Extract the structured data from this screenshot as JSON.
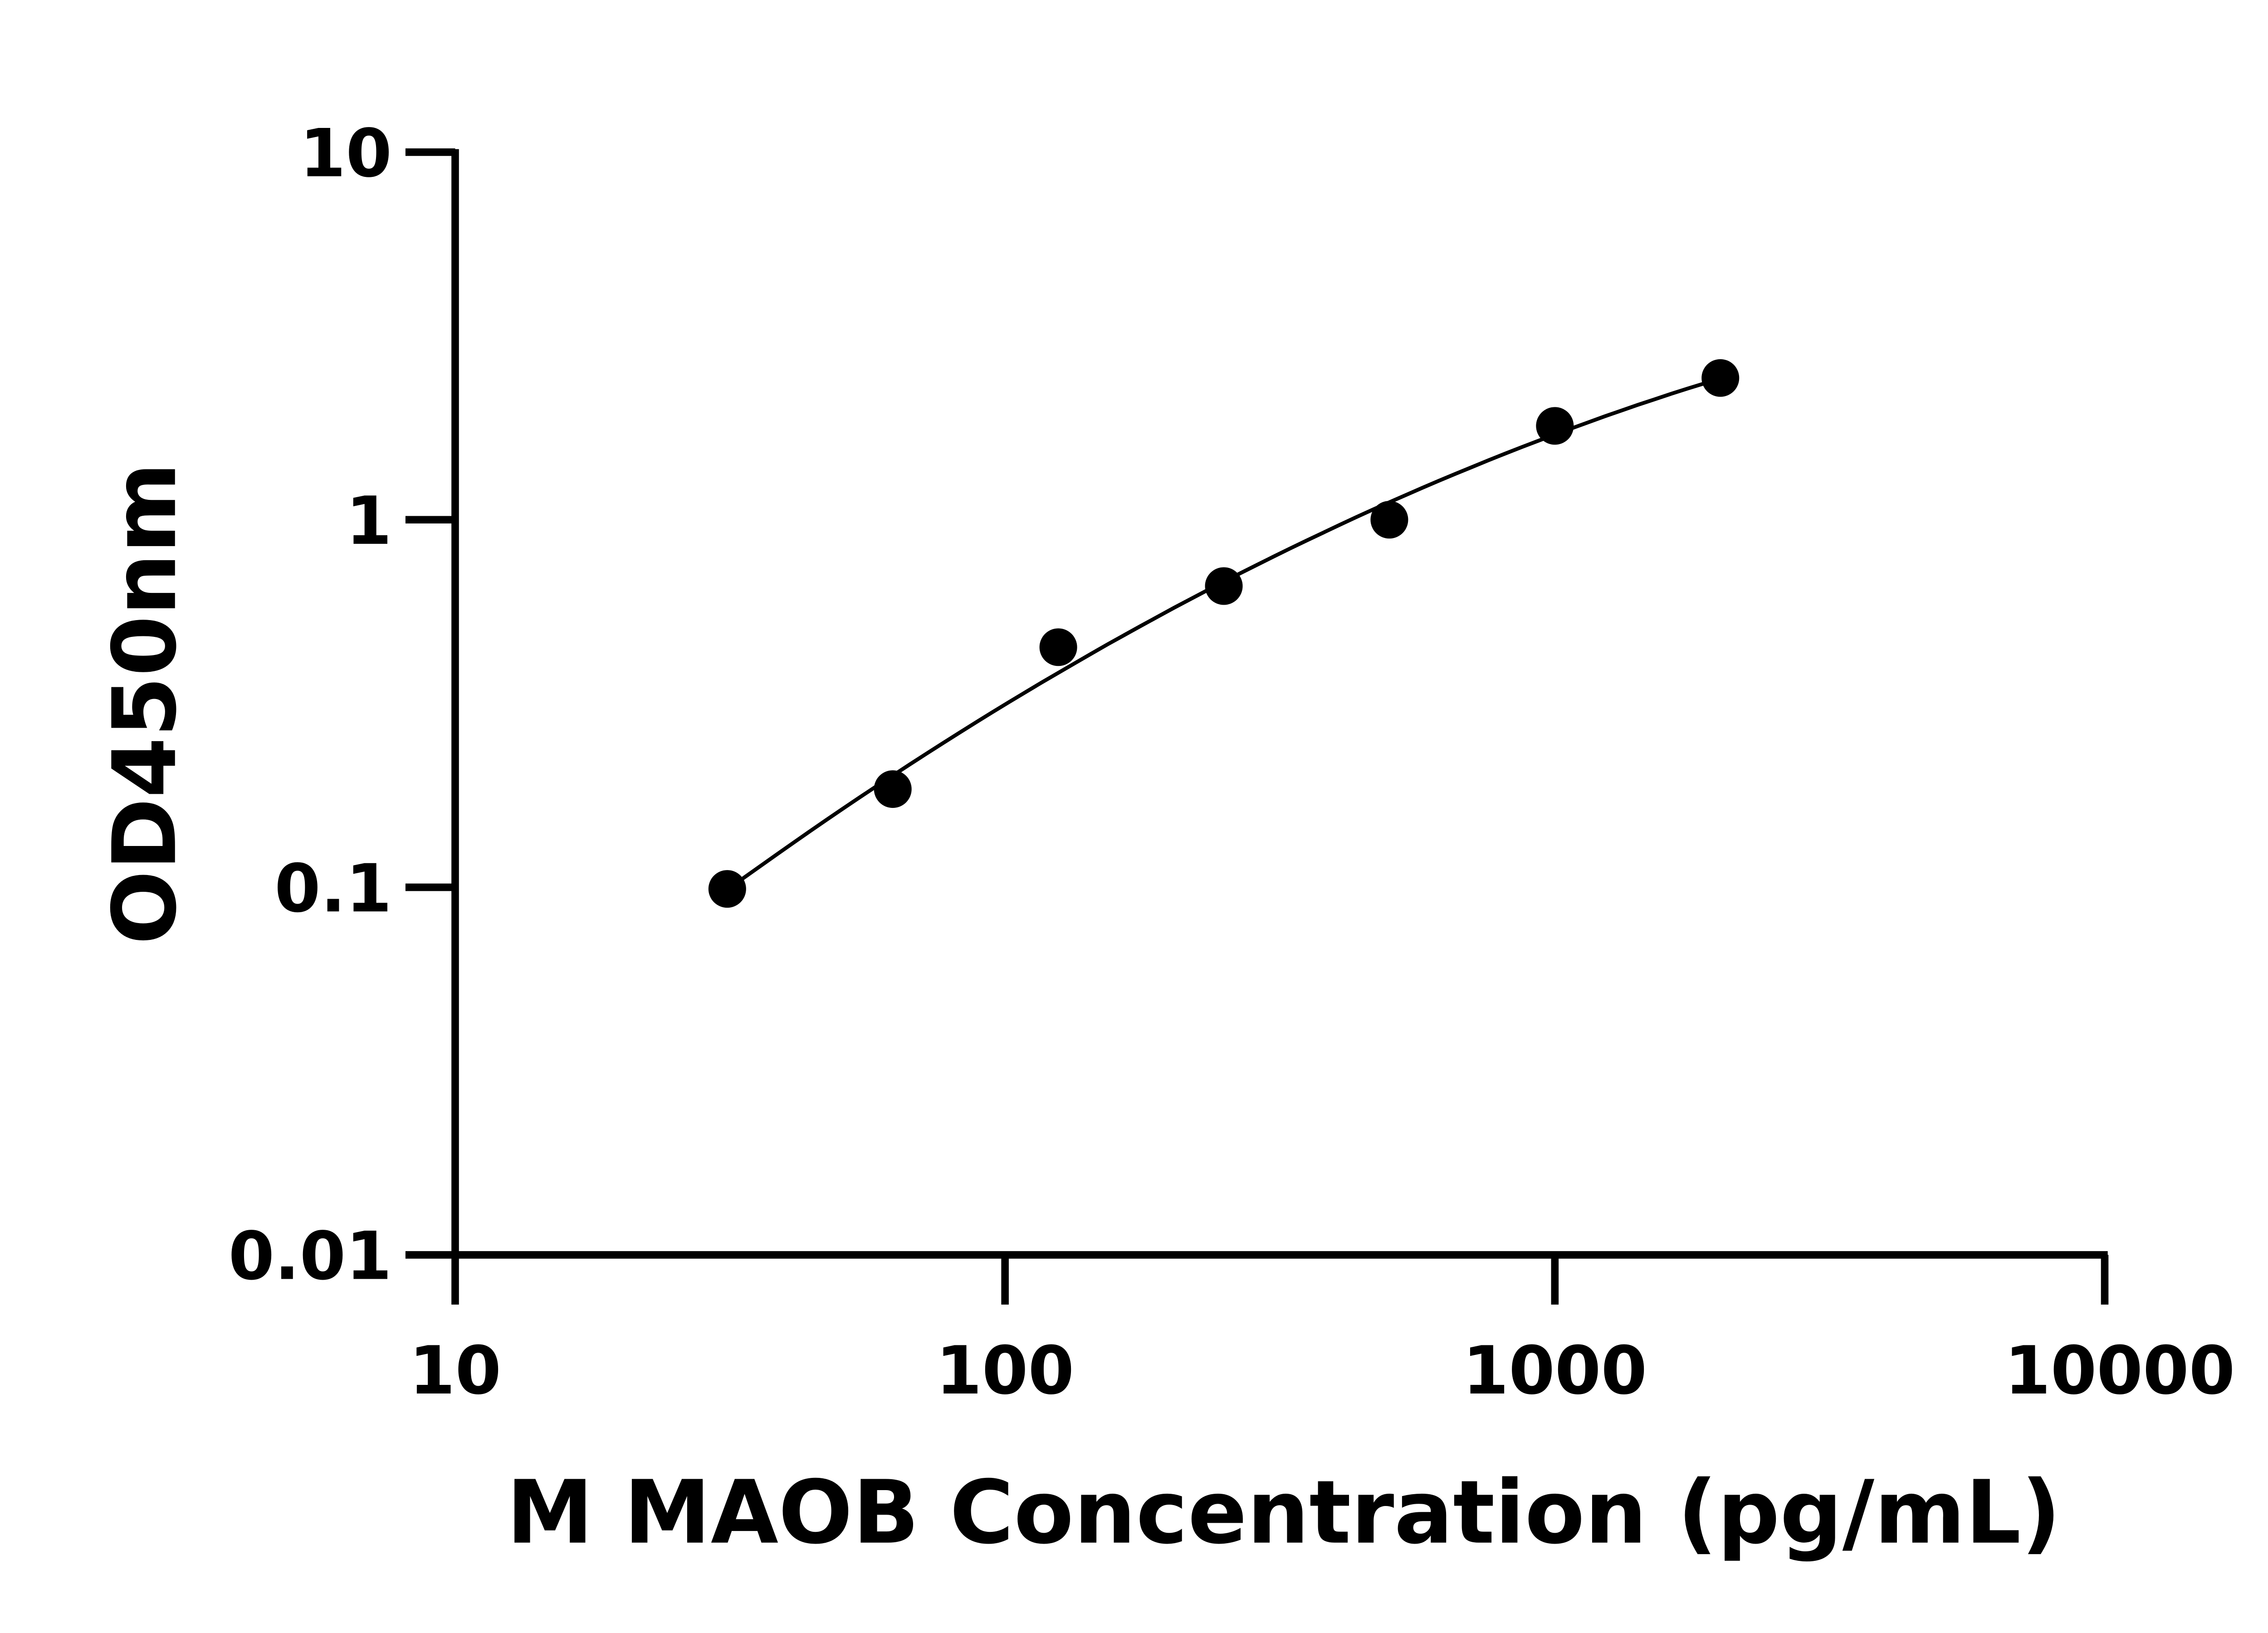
{
  "chart_data": {
    "type": "scatter",
    "title": "",
    "xlabel": "M MAOB Concentration (pg/mL)",
    "ylabel": "OD450nm",
    "x_scale": "log",
    "y_scale": "log",
    "xlim": [
      10,
      10000
    ],
    "ylim": [
      0.01,
      10
    ],
    "x_ticks": [
      "10",
      "100",
      "1000",
      "10000"
    ],
    "y_ticks": [
      "0.01",
      "0.1",
      "1",
      "10"
    ],
    "grid": false,
    "legend": "none",
    "fit_curve": true,
    "series": [
      {
        "x": [
          31.25,
          62.5,
          125,
          250,
          500,
          1000,
          2000
        ],
        "y": [
          0.099,
          0.185,
          0.45,
          0.66,
          1.0,
          1.8,
          2.43
        ]
      }
    ],
    "colors": {
      "points": "#000000",
      "axes": "#000000",
      "curve": "#000000"
    }
  }
}
